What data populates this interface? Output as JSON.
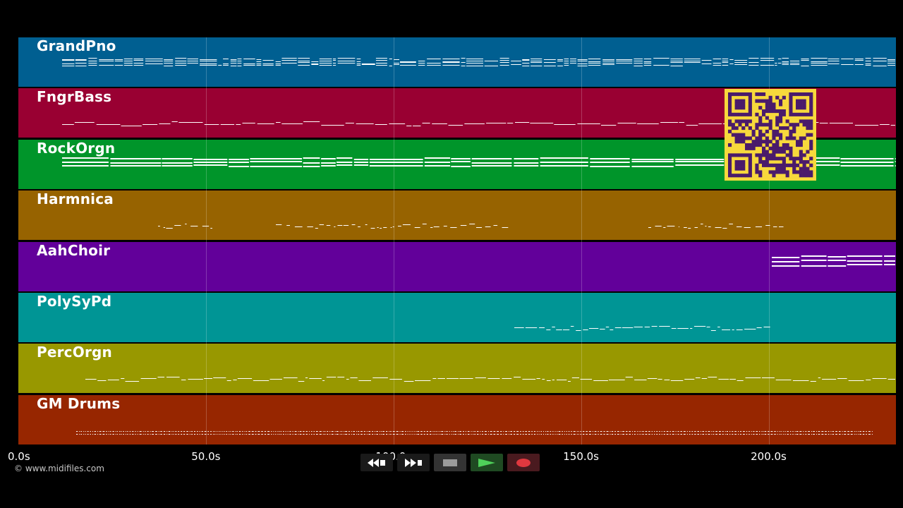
{
  "tracks": [
    {
      "name": "GrandPno",
      "color": "#005f91"
    },
    {
      "name": "FngrBass",
      "color": "#990032"
    },
    {
      "name": "RockOrgn",
      "color": "#00952a"
    },
    {
      "name": "Harmnica",
      "color": "#976300"
    },
    {
      "name": "AahChoir",
      "color": "#62009a"
    },
    {
      "name": "PolySyPd",
      "color": "#009595"
    },
    {
      "name": "PercOrgn",
      "color": "#989800"
    },
    {
      "name": "GM Drums",
      "color": "#972600"
    }
  ],
  "timeline": {
    "ticks": [
      "0.0s",
      "50.0s",
      "100.0s",
      "150.0s",
      "200.0s"
    ],
    "tick_values": [
      0,
      50,
      100,
      150,
      200
    ]
  },
  "copyright": "© www.midifiles.com",
  "transport": {
    "buttons": [
      {
        "name": "rewind-button",
        "icon": "rewind-icon"
      },
      {
        "name": "fast-forward-button",
        "icon": "fast-forward-icon"
      },
      {
        "name": "stop-button",
        "icon": "stop-icon"
      },
      {
        "name": "play-button",
        "icon": "play-icon"
      },
      {
        "name": "record-button",
        "icon": "record-icon"
      }
    ]
  },
  "overlay": {
    "icon": "qr-code-icon",
    "color": "#f7d93c"
  }
}
